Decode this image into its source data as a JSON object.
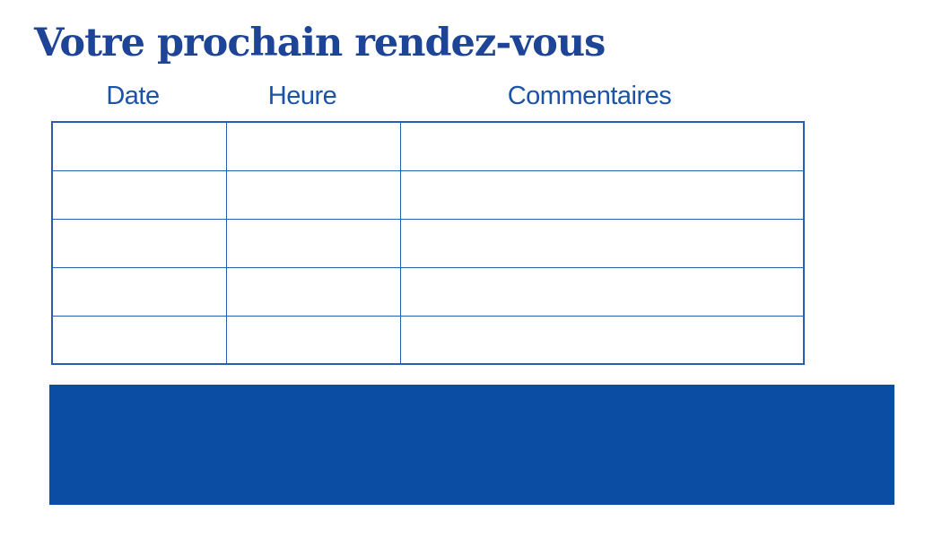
{
  "page": {
    "title": "Votre prochain rendez-vous"
  },
  "table": {
    "headers": [
      "Date",
      "Heure",
      "Commentaires"
    ],
    "row_count": 5,
    "rows": [
      [
        "",
        "",
        ""
      ],
      [
        "",
        "",
        ""
      ],
      [
        "",
        "",
        ""
      ],
      [
        "",
        "",
        ""
      ],
      [
        "",
        "",
        ""
      ]
    ]
  },
  "colors": {
    "background": "#ffffff",
    "title": "#1d4496",
    "header": "#1a53a8",
    "border": "#2a5caf",
    "banner": "#0b4da2"
  }
}
